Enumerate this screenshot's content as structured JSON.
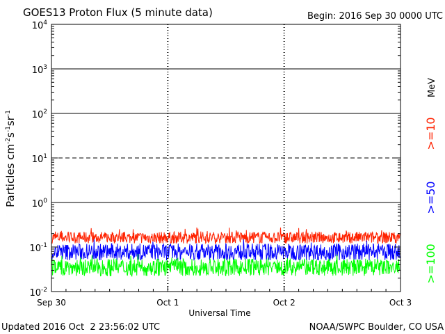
{
  "header": {
    "title": "GOES13 Proton Flux (5 minute data)",
    "begin": "Begin: 2016 Sep 30 0000 UTC"
  },
  "footer": {
    "updated": "Updated 2016 Oct  2 23:56:02 UTC",
    "source": "NOAA/SWPC Boulder, CO USA"
  },
  "chart_data": {
    "type": "line",
    "title": "GOES13 Proton Flux (5 minute data)",
    "xlabel": "Universal Time",
    "ylabel_parts": {
      "base": "Particles cm",
      "exp1": "-2",
      "s": "s",
      "exp2": "-1",
      "sr": "sr",
      "exp3": "-1"
    },
    "yscale": "log",
    "ylim": [
      0.01,
      10000
    ],
    "y_ticks": [
      {
        "base": "10",
        "exp": "-2"
      },
      {
        "base": "10",
        "exp": "-1"
      },
      {
        "base": "10",
        "exp": "0"
      },
      {
        "base": "10",
        "exp": "1"
      },
      {
        "base": "10",
        "exp": "2"
      },
      {
        "base": "10",
        "exp": "3"
      },
      {
        "base": "10",
        "exp": "4"
      }
    ],
    "x_days": 3,
    "x_ticks": [
      "Sep 30",
      "Oct 1",
      "Oct 2",
      "Oct 3"
    ],
    "threshold_lines": [
      {
        "value": 1,
        "style": "solid"
      },
      {
        "value": 10,
        "style": "dashed"
      },
      {
        "value": 100,
        "style": "solid"
      },
      {
        "value": 1000,
        "style": "solid"
      }
    ],
    "legend_unit": "MeV",
    "series": [
      {
        "name": ">=10",
        "color": "#ff2200",
        "typical": [
          0.12,
          0.22
        ]
      },
      {
        "name": ">=50",
        "color": "#0000ff",
        "typical": [
          0.05,
          0.12
        ]
      },
      {
        "name": ">=100",
        "color": "#00ff00",
        "typical": [
          0.022,
          0.055
        ]
      }
    ]
  }
}
